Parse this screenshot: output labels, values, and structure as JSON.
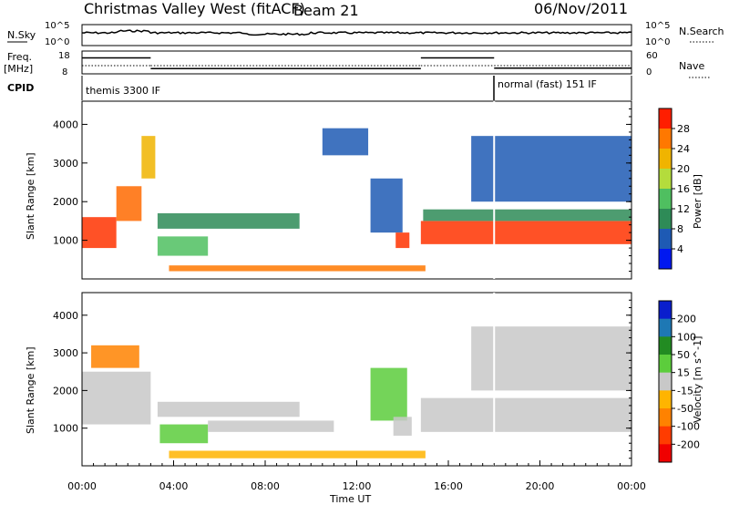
{
  "header": {
    "station": "Christmas Valley West (fitACF)",
    "beam": "Beam 21",
    "date": "06/Nov/2011"
  },
  "info_panels": {
    "nsky_label": "N.Sky",
    "nsky_ticks": [
      "10^5",
      "10^0"
    ],
    "nsearch_label": "N.Search",
    "nsearch_ticks": [
      "10^5",
      "10^0"
    ],
    "freq_label": "Freq.",
    "freq_unit": "[MHz]",
    "freq_ticks": [
      "18",
      "8"
    ],
    "nave_label": "Nave",
    "nave_ticks": [
      "60",
      "0"
    ],
    "cpid_label": "CPID",
    "cpid_segments": [
      {
        "label": "themis 3300 IF",
        "start_hour": 0,
        "end_hour": 18
      },
      {
        "label": "normal (fast) 151 IF",
        "start_hour": 18,
        "end_hour": 24
      }
    ],
    "freq_trace": [
      {
        "start_hour": 0,
        "end_hour": 3.0,
        "freq": 15.0
      },
      {
        "start_hour": 3.0,
        "end_hour": 14.8,
        "freq": 10.3
      },
      {
        "start_hour": 14.8,
        "end_hour": 18.0,
        "freq": 15.0
      },
      {
        "start_hour": 18.0,
        "end_hour": 24,
        "freq": 10.5
      }
    ]
  },
  "chart_data": [
    {
      "type": "heatmap",
      "name": "power-panel",
      "ylabel": "Slant Range [km]",
      "ylim": [
        0,
        4600
      ],
      "yticks": [
        "1000",
        "2000",
        "3000",
        "4000"
      ],
      "colorbar_label": "Power [dB]",
      "colorbar_ticks": [
        "4",
        "8",
        "12",
        "16",
        "20",
        "24",
        "28"
      ],
      "colorbar_colors": [
        "#0018f0",
        "#1e5ab4",
        "#2e8b57",
        "#4fbf60",
        "#b4dc3c",
        "#f0b400",
        "#ff7800",
        "#ff1e00"
      ],
      "regions": [
        {
          "x0": 0.0,
          "x1": 1.5,
          "y0": 800,
          "y1": 1600,
          "color": "#ff3200"
        },
        {
          "x0": 1.5,
          "x1": 2.6,
          "y0": 1500,
          "y1": 2400,
          "color": "#ff6a00"
        },
        {
          "x0": 2.6,
          "x1": 3.2,
          "y0": 2600,
          "y1": 3700,
          "color": "#f0b400"
        },
        {
          "x0": 3.3,
          "x1": 9.5,
          "y0": 1300,
          "y1": 1700,
          "color": "#2e8b57"
        },
        {
          "x0": 3.3,
          "x1": 5.5,
          "y0": 600,
          "y1": 1100,
          "color": "#4fbf60"
        },
        {
          "x0": 3.8,
          "x1": 15.0,
          "y0": 200,
          "y1": 350,
          "color": "#ff7800"
        },
        {
          "x0": 10.5,
          "x1": 12.5,
          "y0": 3200,
          "y1": 3900,
          "color": "#1e5ab4"
        },
        {
          "x0": 12.6,
          "x1": 14.0,
          "y0": 1200,
          "y1": 2600,
          "color": "#1e5ab4"
        },
        {
          "x0": 13.7,
          "x1": 14.3,
          "y0": 800,
          "y1": 1200,
          "color": "#ff3200"
        },
        {
          "x0": 14.8,
          "x1": 24.0,
          "y0": 900,
          "y1": 1500,
          "color": "#ff3200"
        },
        {
          "x0": 14.9,
          "x1": 24.0,
          "y0": 1500,
          "y1": 1800,
          "color": "#2e8b57"
        },
        {
          "x0": 17.0,
          "x1": 24.0,
          "y0": 2000,
          "y1": 3700,
          "color": "#1e5ab4"
        }
      ]
    },
    {
      "type": "heatmap",
      "name": "velocity-panel",
      "ylabel": "Slant Range [km]",
      "ylim": [
        0,
        4600
      ],
      "yticks": [
        "1000",
        "2000",
        "3000",
        "4000"
      ],
      "colorbar_label": "Velocity [m s^-1]",
      "colorbar_ticks": [
        "200",
        "100",
        "50",
        "15",
        "-15",
        "-50",
        "-100",
        "-200"
      ],
      "colorbar_colors": [
        "#0a1ecd",
        "#1e78b4",
        "#228b22",
        "#5ccd3c",
        "#c8c8c8",
        "#ffb400",
        "#ff8200",
        "#ff3c00",
        "#f00000"
      ],
      "regions": [
        {
          "x0": 0.0,
          "x1": 3.0,
          "y0": 1100,
          "y1": 2500,
          "color": "#c8c8c8"
        },
        {
          "x0": 0.4,
          "x1": 2.5,
          "y0": 2600,
          "y1": 3200,
          "color": "#ff8200"
        },
        {
          "x0": 3.3,
          "x1": 9.5,
          "y0": 1300,
          "y1": 1700,
          "color": "#c8c8c8"
        },
        {
          "x0": 3.4,
          "x1": 5.5,
          "y0": 600,
          "y1": 1100,
          "color": "#5ccd3c"
        },
        {
          "x0": 5.5,
          "x1": 11.0,
          "y0": 900,
          "y1": 1200,
          "color": "#c8c8c8"
        },
        {
          "x0": 3.8,
          "x1": 15.0,
          "y0": 200,
          "y1": 400,
          "color": "#ffb400"
        },
        {
          "x0": 12.6,
          "x1": 14.2,
          "y0": 1200,
          "y1": 2600,
          "color": "#5ccd3c"
        },
        {
          "x0": 13.6,
          "x1": 14.4,
          "y0": 800,
          "y1": 1300,
          "color": "#c8c8c8"
        },
        {
          "x0": 14.8,
          "x1": 24.0,
          "y0": 900,
          "y1": 1800,
          "color": "#c8c8c8"
        },
        {
          "x0": 17.0,
          "x1": 24.0,
          "y0": 2000,
          "y1": 3700,
          "color": "#c8c8c8"
        }
      ]
    }
  ],
  "time_axis": {
    "label": "Time UT",
    "ticks": [
      "00:00",
      "04:00",
      "08:00",
      "12:00",
      "16:00",
      "20:00",
      "00:00"
    ]
  }
}
